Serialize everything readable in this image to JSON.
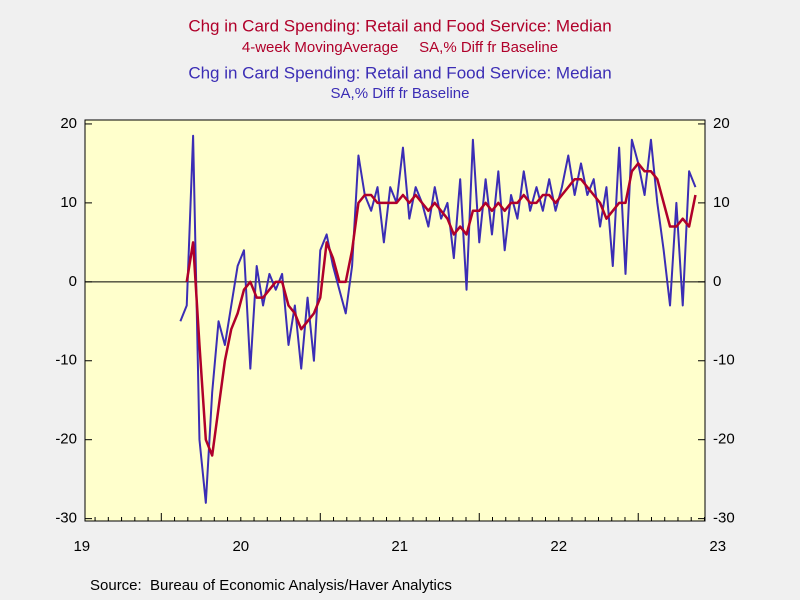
{
  "chart_data": {
    "type": "line",
    "series": [
      {
        "name": "Chg in Card Spending: Retail and Food Service: Median",
        "subtitle": "4-week MovingAverage     SA,% Diff fr Baseline",
        "color": "#b0002a",
        "values": [
          null,
          0,
          5,
          -8,
          -20,
          -22,
          -16,
          -10,
          -6,
          -4,
          -1,
          0,
          -2,
          -2,
          -1,
          0,
          0,
          -3,
          -4,
          -6,
          -5,
          -4,
          -2,
          5,
          3,
          0,
          0,
          4,
          10,
          11,
          11,
          10,
          10,
          10,
          10,
          11,
          10,
          11,
          10,
          9,
          10,
          9,
          8,
          6,
          7,
          6,
          9,
          9,
          10,
          9,
          10,
          9,
          10,
          10,
          11,
          10,
          10,
          11,
          11,
          10,
          11,
          12,
          13,
          13,
          12,
          11,
          10,
          8,
          9,
          10,
          10,
          14,
          15,
          14,
          14,
          13,
          10,
          7,
          7,
          8,
          7,
          11
        ]
      },
      {
        "name": "Chg in Card Spending: Retail and Food Service: Median",
        "subtitle": "SA,% Diff fr Baseline",
        "color": "#3b2db5",
        "values": [
          -5,
          -3,
          18.5,
          -20,
          -28,
          -14,
          -5,
          -8,
          -3,
          2,
          4,
          -11,
          2,
          -3,
          1,
          -1,
          1,
          -8,
          -3,
          -11,
          -2,
          -10,
          4,
          6,
          2,
          -1,
          -4,
          2,
          16,
          11,
          9,
          12,
          5,
          12,
          10,
          17,
          8,
          12,
          10,
          7,
          12,
          8,
          10,
          3,
          13,
          -1,
          18,
          5,
          13,
          6,
          14,
          4,
          11,
          8,
          14,
          9,
          12,
          9,
          13,
          9,
          12,
          16,
          11,
          15,
          11,
          13,
          7,
          12,
          2,
          17,
          1,
          18,
          15,
          11,
          18,
          10,
          4,
          -3,
          10,
          -3,
          14,
          12
        ]
      }
    ],
    "x": [
      2020.12,
      2020.16,
      2020.2,
      2020.24,
      2020.28,
      2020.32,
      2020.36,
      2020.4,
      2020.44,
      2020.48,
      2020.52,
      2020.56,
      2020.6,
      2020.64,
      2020.68,
      2020.72,
      2020.76,
      2020.8,
      2020.84,
      2020.88,
      2020.92,
      2020.96,
      2021.0,
      2021.04,
      2021.08,
      2021.12,
      2021.16,
      2021.2,
      2021.24,
      2021.28,
      2021.32,
      2021.36,
      2021.4,
      2021.44,
      2021.48,
      2021.52,
      2021.56,
      2021.6,
      2021.64,
      2021.68,
      2021.72,
      2021.76,
      2021.8,
      2021.84,
      2021.88,
      2021.92,
      2021.96,
      2022.0,
      2022.04,
      2022.08,
      2022.12,
      2022.16,
      2022.2,
      2022.24,
      2022.28,
      2022.32,
      2022.36,
      2022.4,
      2022.44,
      2022.48,
      2022.52,
      2022.56,
      2022.6,
      2022.64,
      2022.68,
      2022.72,
      2022.76,
      2022.8,
      2022.84,
      2022.88,
      2022.92,
      2022.96,
      2023.0,
      2023.04,
      2023.08,
      2023.12,
      2023.16,
      2023.2,
      2023.24,
      2023.28,
      2023.32,
      2023.36
    ],
    "xlim": [
      2019.52,
      2023.42
    ],
    "xticks": [
      {
        "value": 2019.5,
        "label": "19"
      },
      {
        "value": 2020.5,
        "label": "20"
      },
      {
        "value": 2021.5,
        "label": "21"
      },
      {
        "value": 2022.5,
        "label": "22"
      },
      {
        "value": 2023.5,
        "label": "23"
      }
    ],
    "ylim": [
      -30.3,
      20.5
    ],
    "yticks": [
      -30,
      -20,
      -10,
      0,
      10,
      20
    ],
    "y2lim": [
      -30.3,
      20.5
    ],
    "y2ticks": [
      -30,
      -20,
      -10,
      0,
      10,
      20
    ],
    "source": "Source:  Bureau of Economic Analysis/Haver Analytics"
  }
}
